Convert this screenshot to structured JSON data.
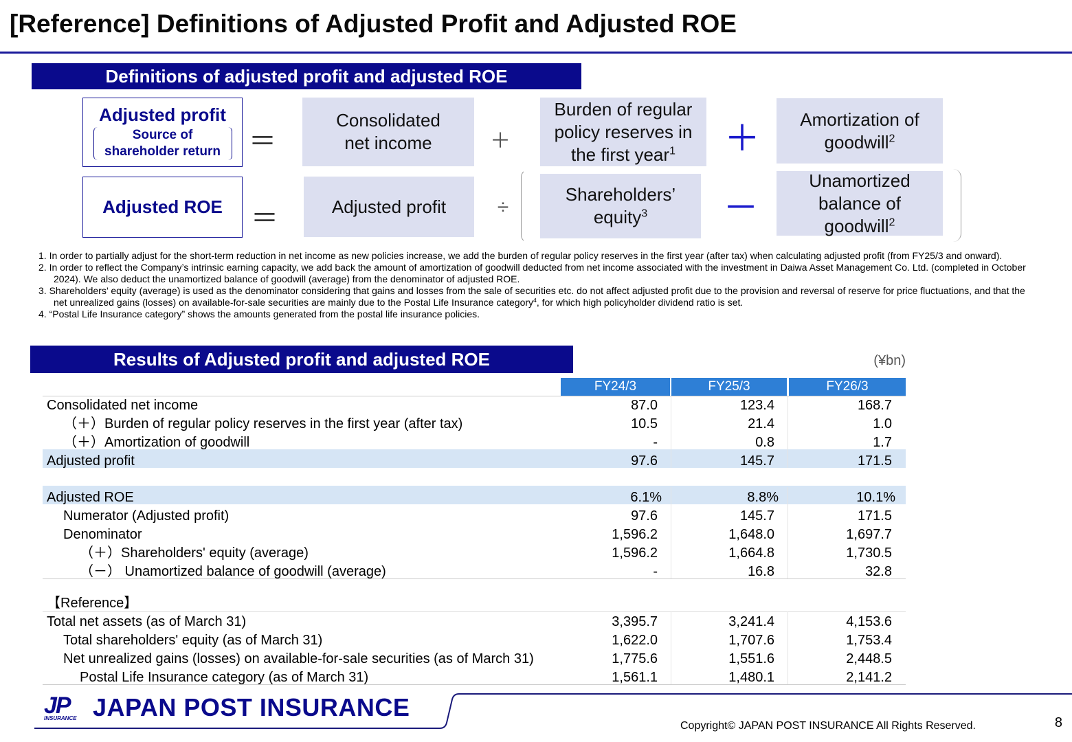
{
  "title": "[Reference] Definitions of Adjusted Profit and Adjusted ROE",
  "definitions": {
    "heading": "Definitions of adjusted profit and adjusted ROE",
    "profit_formula": {
      "lhs": "Adjusted profit",
      "lhs_note": "Source of shareholder return",
      "eq": "＝",
      "term1": "Consolidated net income",
      "op1": "＋",
      "term2": {
        "text": "Burden of regular policy reserves in the first year",
        "sup": "1"
      },
      "op2": "＋",
      "term3": {
        "text": "Amortization of goodwill",
        "sup": "2"
      }
    },
    "roe_formula": {
      "lhs": "Adjusted ROE",
      "eq": "＝",
      "term1": "Adjusted profit",
      "op1": "÷",
      "term2": {
        "text": "Shareholders’ equity",
        "sup": "3"
      },
      "op2": "－",
      "term3": {
        "text": "Unamortized balance of goodwill",
        "sup": "2"
      }
    }
  },
  "notes": [
    {
      "text": "1. In order to partially adjust for the short-term reduction in net income as new policies increase, we add the burden of regular policy reserves in the first year (after tax) when calculating adjusted profit (from FY25/3 and onward)."
    },
    {
      "text": "2. In order to reflect the Company’s intrinsic earning capacity, we add back the amount of amortization of goodwill deducted from net income associated with the investment in Daiwa Asset Management Co. Ltd. (completed in October 2024). We also deduct the unamortized balance of goodwill (average) from the denominator of adjusted ROE."
    },
    {
      "text": "3. Shareholders’ equity (average) is used as the denominator considering that gains and losses from the sale of securities etc. do not affect adjusted profit due to the provision and reversal of reserve for price fluctuations, and that the net unrealized gains (losses) on available-for-sale securities are mainly due to the Postal Life Insurance category",
      "sup": "4",
      "rest": ", for which high policyholder dividend ratio is set."
    },
    {
      "text": "4.  “Postal Life Insurance category” shows the amounts generated from the postal life insurance policies."
    }
  ],
  "results": {
    "heading": "Results of Adjusted profit and adjusted ROE",
    "unit": "(¥bn)",
    "columns": [
      "FY24/3",
      "FY25/3",
      "FY26/3"
    ],
    "sections": [
      {
        "rows": [
          [
            "Consolidated net income",
            "87.0",
            "123.4",
            "168.7"
          ],
          [
            "（＋）Burden of regular policy reserves in the first year (after tax)",
            "10.5",
            "21.4",
            "1.0"
          ],
          [
            "（＋）Amortization of  goodwill",
            "-",
            "0.8",
            "1.7"
          ],
          [
            "Adjusted profit",
            "97.6",
            "145.7",
            "171.5"
          ]
        ]
      },
      {
        "rows": [
          [
            "Adjusted ROE",
            "6.1%",
            "8.8%",
            "10.1%"
          ],
          [
            "Numerator (Adjusted profit)",
            "97.6",
            "145.7",
            "171.5"
          ],
          [
            "Denominator",
            "1,596.2",
            "1,648.0",
            "1,697.7"
          ],
          [
            "（＋）Shareholders' equity (average)",
            "1,596.2",
            "1,664.8",
            "1,730.5"
          ],
          [
            "（－） Unamortized balance of goodwill (average)",
            "-",
            "16.8",
            "32.8"
          ]
        ]
      },
      {
        "heading": "【Reference】",
        "rows": [
          [
            "Total net assets (as of March 31)",
            "3,395.7",
            "3,241.4",
            "4,153.6"
          ],
          [
            "Total shareholders' equity (as of March 31)",
            "1,622.0",
            "1,707.6",
            "1,753.4"
          ],
          [
            "Net unrealized gains (losses) on available-for-sale securities (as of March 31)",
            "1,775.6",
            "1,551.6",
            "2,448.5"
          ],
          [
            "Postal Life Insurance category (as of March 31)",
            "1,561.1",
            "1,480.1",
            "2,141.2"
          ]
        ]
      }
    ]
  },
  "footer": {
    "mark": "JP",
    "mark_sub": "INSURANCE",
    "brand": "JAPAN POST INSURANCE",
    "copyright": "Copyright© JAPAN POST INSURANCE All Rights Reserved.",
    "page": "8"
  }
}
